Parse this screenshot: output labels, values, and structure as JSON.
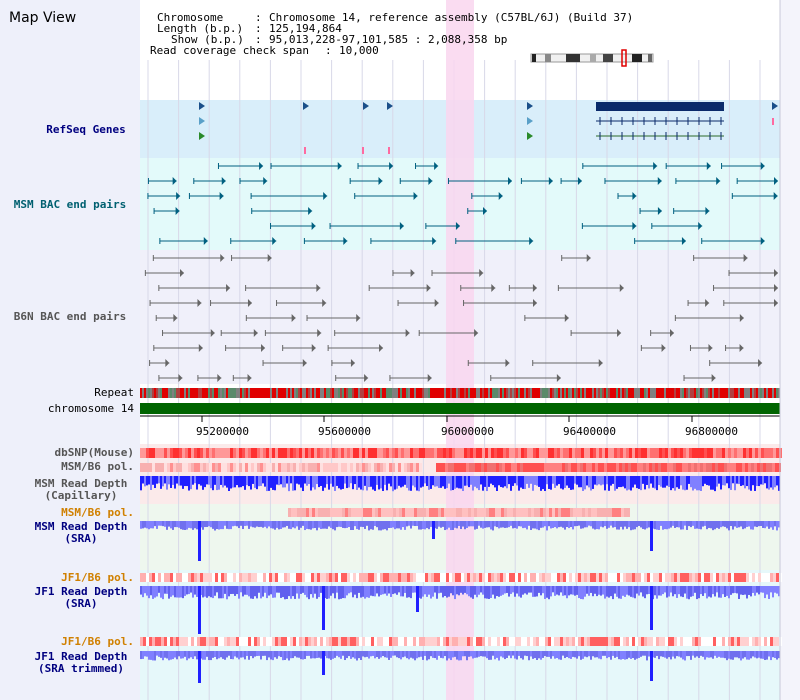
{
  "window": {
    "title": "Map View"
  },
  "info": {
    "chromosome_label": "Chromosome",
    "chromosome_value": "Chromosome 14, reference assembly (C57BL/6J) (Build 37)",
    "length_label": "Length (b.p.)",
    "length_value": "125,194,864",
    "show_label": "Show (b.p.)",
    "show_value": "95,013,228-97,101,585 : 2,088,358 bp",
    "coverage_label": "Read coverage check span",
    "coverage_value": "10,000"
  },
  "tracks": {
    "refseq": "RefSeq Genes",
    "msm_bac": "MSM BAC end pairs",
    "b6n_bac": "B6N BAC end pairs",
    "repeat": "Repeat",
    "chromosome": "chromosome 14",
    "dbsnp": "dbSNP(Mouse)",
    "msm_b6_pol": "MSM/B6 pol.",
    "msm_rd_cap_1": "MSM Read Depth",
    "msm_rd_cap_2": "(Capillary)",
    "msm_b6_pol2": "MSM/B6 pol.",
    "msm_rd_sra_1": "MSM Read Depth",
    "msm_rd_sra_2": "(SRA)",
    "jf1_b6_pol": "JF1/B6 pol.",
    "jf1_rd_sra_1": "JF1 Read Depth",
    "jf1_rd_sra_2": "(SRA)",
    "jf1_b6_pol2": "JF1/B6 pol.",
    "jf1_rd_trim_1": "JF1 Read Depth",
    "jf1_rd_trim_2": "(SRA trimmed)"
  },
  "axis": {
    "ticks": [
      "95200000",
      "95600000",
      "96000000",
      "96400000",
      "96800000"
    ]
  },
  "colors": {
    "refseq_bg": "#d9eefa",
    "msm_bg": "#e3fafa",
    "b6n_bg": "#f0f0fa",
    "highlight": "#f9d6ee",
    "chrom_green": "#006400",
    "depth_blue": "#2020ff",
    "depth_light": "#8080ff",
    "snp_red": "#ff3030",
    "msm_color": "#006080",
    "b6n_color": "#666666",
    "label_blue": "#000080",
    "label_orange": "#d08000",
    "label_teal": "#006070"
  }
}
